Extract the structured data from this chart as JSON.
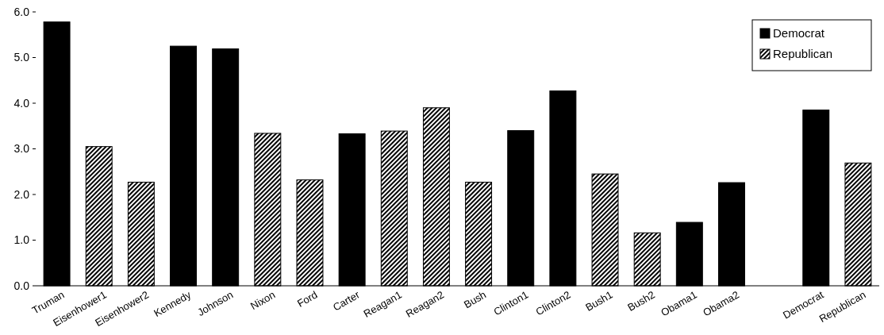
{
  "chart_data": {
    "type": "bar",
    "categories": [
      "Truman",
      "Eisenhower1",
      "Eisenhower2",
      "Kennedy",
      "Johnson",
      "Nixon",
      "Ford",
      "Carter",
      "Reagan1",
      "Reagan2",
      "Bush",
      "Clinton1",
      "Clinton2",
      "Bush1",
      "Bush2",
      "Obama1",
      "Obama2",
      null,
      "Democrat",
      "Republican"
    ],
    "series": [
      {
        "name": "Democrat",
        "color": "#000000",
        "values": [
          5.78,
          null,
          null,
          5.25,
          5.19,
          null,
          null,
          3.33,
          null,
          null,
          null,
          3.4,
          4.27,
          null,
          null,
          1.39,
          2.26,
          null,
          3.85,
          null
        ]
      },
      {
        "name": "Republican",
        "color": "#000000",
        "values": [
          null,
          3.05,
          2.27,
          null,
          null,
          3.34,
          2.32,
          null,
          3.39,
          3.9,
          2.27,
          null,
          null,
          2.45,
          1.16,
          null,
          null,
          null,
          null,
          2.69
        ]
      }
    ],
    "ylim": [
      0,
      6
    ],
    "yticks": [
      {
        "value": 0,
        "label": "0.0"
      },
      {
        "value": 1,
        "label": "1.0"
      },
      {
        "value": 2,
        "label": "2.0"
      },
      {
        "value": 3,
        "label": "3.0"
      },
      {
        "value": 4,
        "label": "4.0"
      },
      {
        "value": 5,
        "label": "5.0"
      },
      {
        "value": 6,
        "label": "6.0"
      }
    ],
    "grid": false,
    "legend": "top right"
  }
}
